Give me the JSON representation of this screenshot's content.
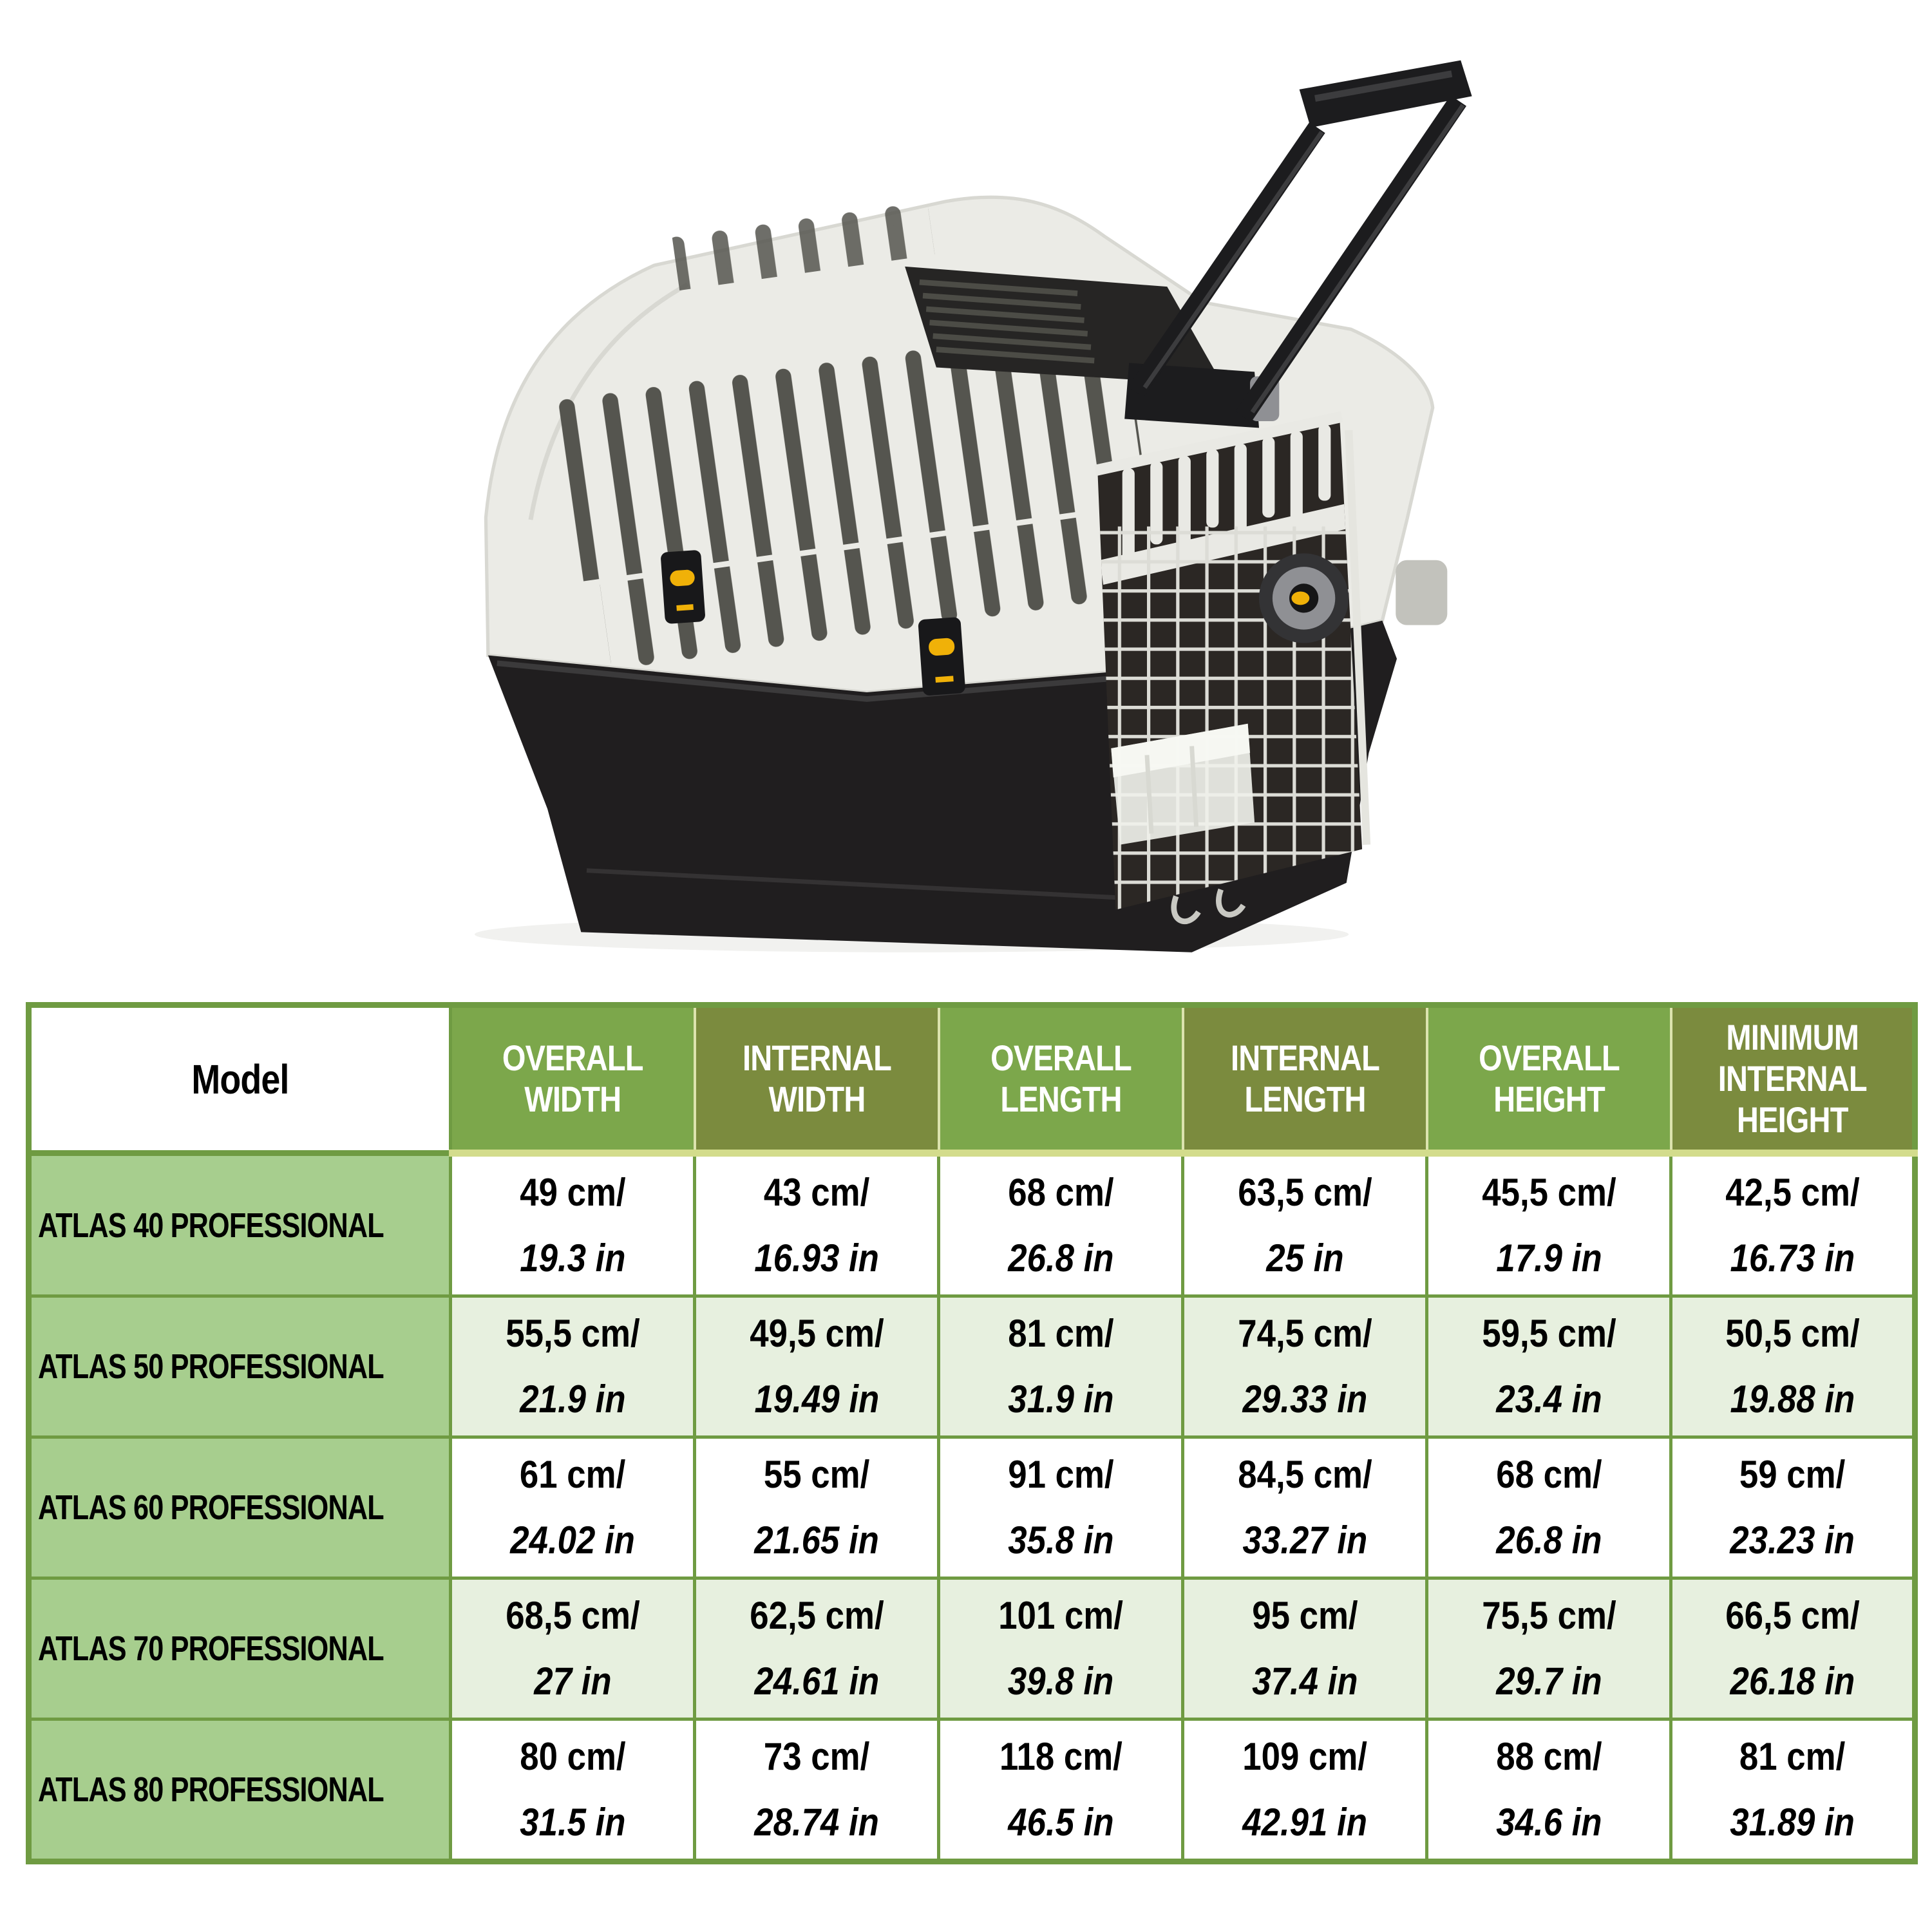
{
  "page": {
    "background": "#ffffff"
  },
  "product": {
    "name": "pet-transport-carrier",
    "description": "Plastic pet transport crate with white top shell, black bottom tub, side ventilation slots, wire mesh door with locking knob, yellow latch clips and an extended black trolley handle",
    "colors": {
      "shell": "#ebebe6",
      "tub": "#201e1f",
      "trolley_handle": "#1c1c1e",
      "mesh_wire": "#dcdcd6",
      "door_interior": "#2b2724",
      "latch_yellow": "#f0b108",
      "knob_gray": "#8f9094"
    }
  },
  "table": {
    "accent_border": "#6f9b42",
    "header_underline": "#d3dc8c",
    "header": {
      "model_label": "Model",
      "columns": [
        {
          "label": "OVERALL WIDTH",
          "bg": "#7ca74b"
        },
        {
          "label": "INTERNAL WIDTH",
          "bg": "#7b8b3e"
        },
        {
          "label": "OVERALL LENGTH",
          "bg": "#7ca74b"
        },
        {
          "label": "INTERNAL LENGTH",
          "bg": "#7b8b3e"
        },
        {
          "label": "OVERALL HEIGHT",
          "bg": "#7ca74b"
        },
        {
          "label": "MINIMUM INTERNAL HEIGHT",
          "bg": "#7b8b3e"
        }
      ]
    },
    "row_colors": {
      "model_column": "#a7ce8e",
      "tint_row": "#e7f0df",
      "plain_row": "#ffffff"
    },
    "rows": [
      {
        "model": "ATLAS 40 PROFESSIONAL",
        "values": [
          {
            "cm": "49 cm/",
            "in": "19.3 in"
          },
          {
            "cm": "43 cm/",
            "in": "16.93 in"
          },
          {
            "cm": "68 cm/",
            "in": "26.8 in"
          },
          {
            "cm": "63,5 cm/",
            "in": "25 in"
          },
          {
            "cm": "45,5 cm/",
            "in": "17.9 in"
          },
          {
            "cm": "42,5 cm/",
            "in": "16.73 in"
          }
        ]
      },
      {
        "model": "ATLAS 50 PROFESSIONAL",
        "values": [
          {
            "cm": "55,5 cm/",
            "in": "21.9 in"
          },
          {
            "cm": "49,5 cm/",
            "in": "19.49 in"
          },
          {
            "cm": "81 cm/",
            "in": "31.9 in"
          },
          {
            "cm": "74,5 cm/",
            "in": "29.33 in"
          },
          {
            "cm": "59,5 cm/",
            "in": "23.4 in"
          },
          {
            "cm": "50,5 cm/",
            "in": "19.88 in"
          }
        ]
      },
      {
        "model": "ATLAS 60 PROFESSIONAL",
        "values": [
          {
            "cm": "61 cm/",
            "in": "24.02 in"
          },
          {
            "cm": "55 cm/",
            "in": "21.65 in"
          },
          {
            "cm": "91 cm/",
            "in": "35.8 in"
          },
          {
            "cm": "84,5 cm/",
            "in": "33.27 in"
          },
          {
            "cm": "68 cm/",
            "in": "26.8 in"
          },
          {
            "cm": "59 cm/",
            "in": "23.23 in"
          }
        ]
      },
      {
        "model": "ATLAS 70 PROFESSIONAL",
        "values": [
          {
            "cm": "68,5 cm/",
            "in": "27 in"
          },
          {
            "cm": "62,5 cm/",
            "in": "24.61 in"
          },
          {
            "cm": "101 cm/",
            "in": "39.8 in"
          },
          {
            "cm": "95 cm/",
            "in": "37.4 in"
          },
          {
            "cm": "75,5 cm/",
            "in": "29.7 in"
          },
          {
            "cm": "66,5 cm/",
            "in": "26.18 in"
          }
        ]
      },
      {
        "model": "ATLAS 80 PROFESSIONAL",
        "values": [
          {
            "cm": "80 cm/",
            "in": "31.5 in"
          },
          {
            "cm": "73 cm/",
            "in": "28.74 in"
          },
          {
            "cm": "118 cm/",
            "in": "46.5 in"
          },
          {
            "cm": "109 cm/",
            "in": "42.91 in"
          },
          {
            "cm": "88 cm/",
            "in": "34.6 in"
          },
          {
            "cm": "81 cm/",
            "in": "31.89 in"
          }
        ]
      }
    ]
  }
}
